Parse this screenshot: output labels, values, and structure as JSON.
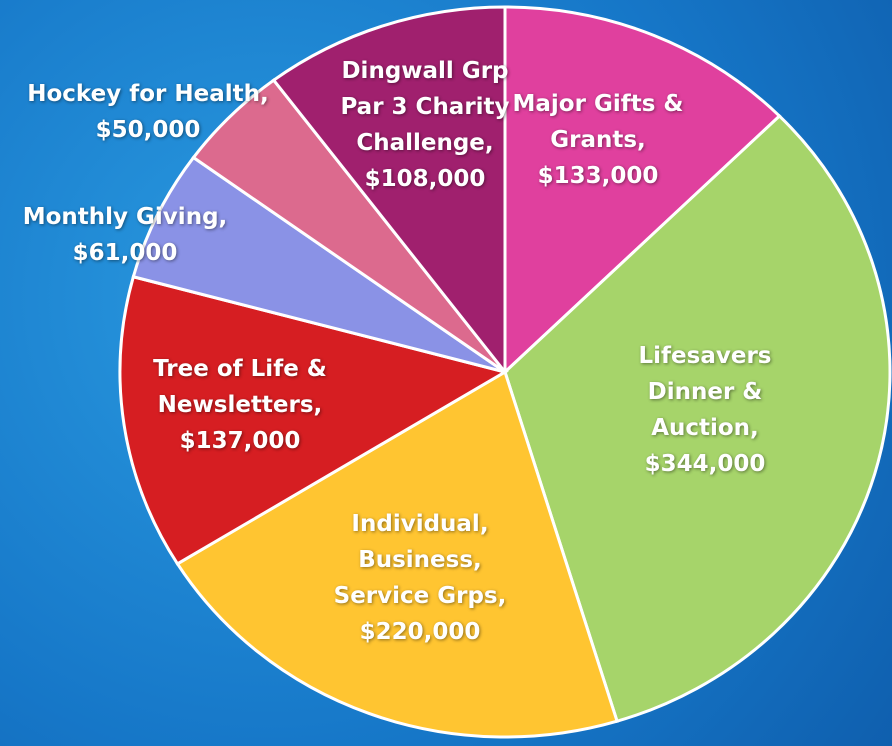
{
  "chart_data": {
    "type": "pie",
    "categories": [
      "Major Gifts & Grants,",
      "Lifesavers Dinner & Auction,",
      "Individual, Business, Service Grps,",
      "Tree of Life & Newsletters,",
      "Monthly Giving,",
      "Hockey for Health,",
      "Dingwall Grp Par 3 Charity Challenge,"
    ],
    "values": [
      133000,
      344000,
      220000,
      137000,
      61000,
      50000,
      108000
    ],
    "value_labels": [
      "$133,000",
      "$344,000",
      "$220,000",
      "$137,000",
      "$61,000",
      "$50,000",
      "$108,000"
    ],
    "colors": [
      "#e0409e",
      "#a6d46a",
      "#ffc531",
      "#d61e22",
      "#8a92e6",
      "#dc6a8e",
      "#a0206e"
    ]
  }
}
